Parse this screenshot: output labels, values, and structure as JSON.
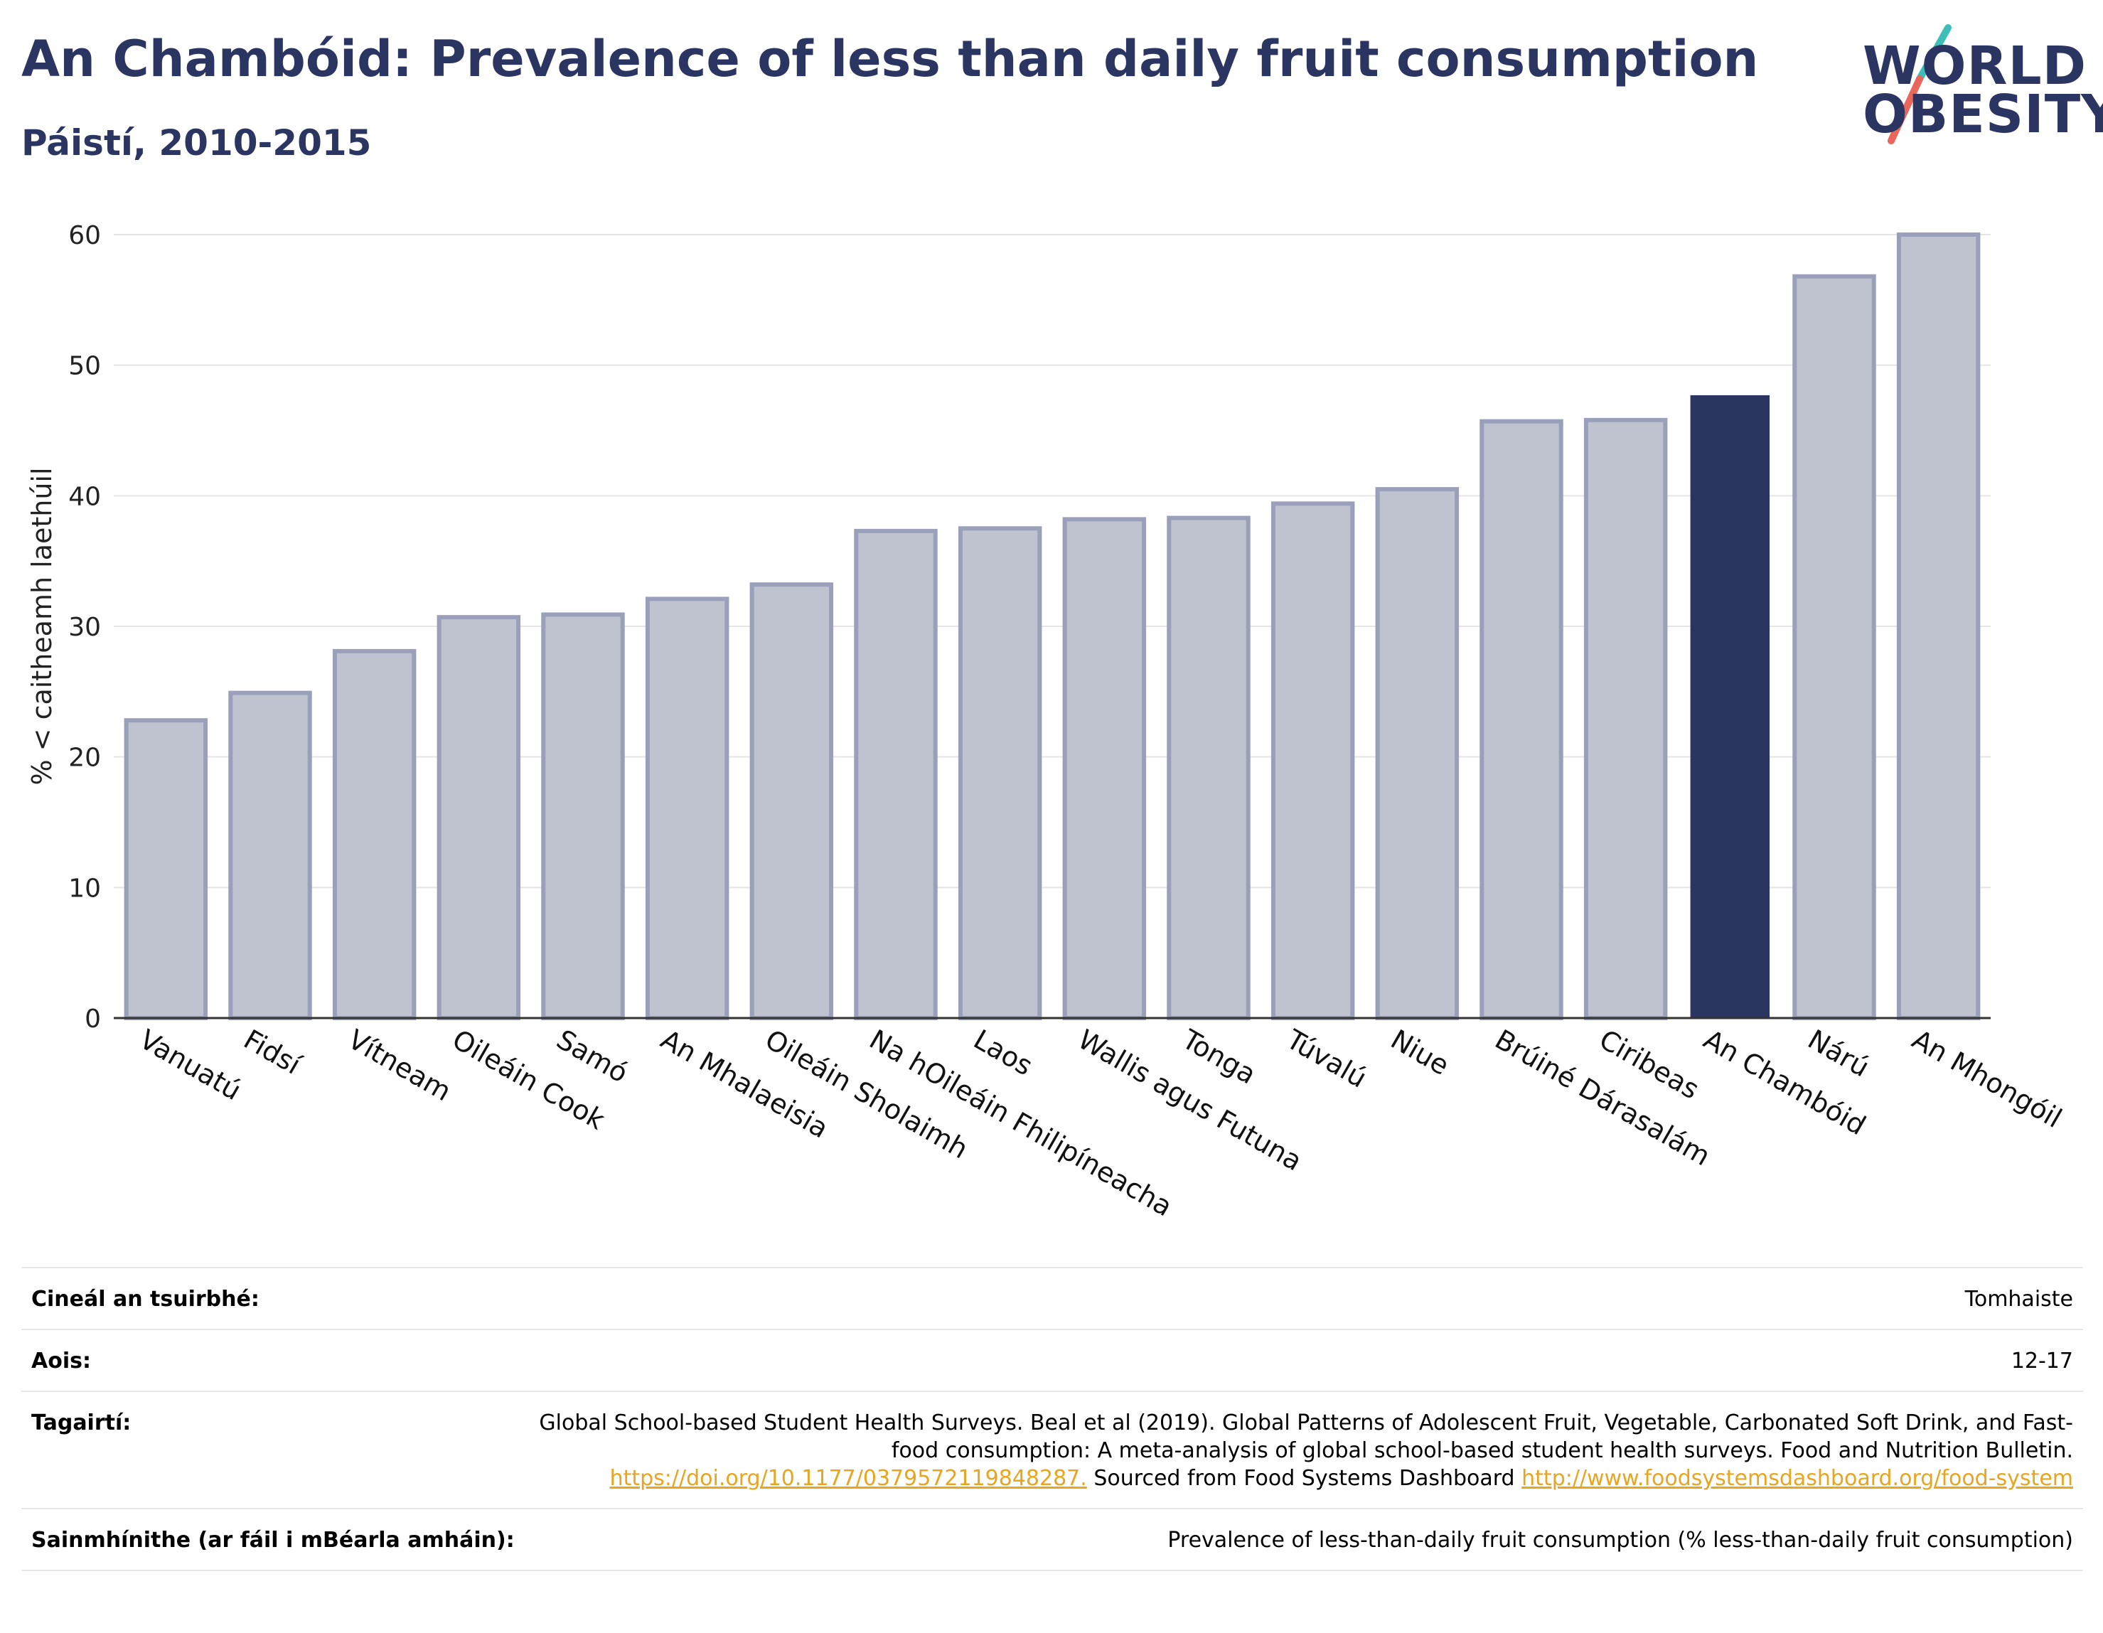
{
  "header": {
    "title": "An Chambóid: Prevalence of less than daily fruit consumption",
    "subtitle": "Páistí, 2010-2015"
  },
  "logo": {
    "line1": "WORLD",
    "line2": "OBESITY",
    "accent_teal": "#3bbfb8",
    "accent_red": "#e8675a"
  },
  "colors": {
    "bar_default": "#bfc2cf",
    "bar_default_stroke": "#9aa0ba",
    "bar_highlight": "#2b3561",
    "grid": "#e5e5e5",
    "axis": "#333333"
  },
  "chart_data": {
    "type": "bar",
    "title": "An Chambóid: Prevalence of less than daily fruit consumption",
    "subtitle": "Páistí, 2010-2015",
    "ylabel": "% < caitheamh laethúil",
    "xlabel": "",
    "ylim": [
      0,
      60
    ],
    "yticks": [
      0,
      10,
      20,
      30,
      40,
      50,
      60
    ],
    "grid": true,
    "highlight": "An Chambóid",
    "categories": [
      "Vanuatú",
      "Fidsí",
      "Vítneam",
      "Oileáin Cook",
      "Samó",
      "An Mhalaeisia",
      "Oileáin Sholaimh",
      "Na hOileáin Fhilipíneacha",
      "Laos",
      "Wallis agus Futuna",
      "Tonga",
      "Túvalú",
      "Niue",
      "Brúiné Dárasalám",
      "Ciribeas",
      "An Chambóid",
      "Nárú",
      "An Mhongóil"
    ],
    "values": [
      22.8,
      24.9,
      28.1,
      30.7,
      30.9,
      32.1,
      33.2,
      37.3,
      37.5,
      38.2,
      38.3,
      39.4,
      40.5,
      45.7,
      45.8,
      47.7,
      56.8,
      60.0
    ]
  },
  "meta": {
    "survey_type_label": "Cineál an tsuirbhé:",
    "survey_type_value": "Tomhaiste",
    "age_label": "Aois:",
    "age_value": "12-17",
    "references_label": "Tagairtí:",
    "references_text": "Global School-based Student Health Surveys. Beal et al (2019). Global Patterns of Adolescent Fruit, Vegetable, Carbonated Soft Drink, and Fast-food consumption: A meta-analysis of global school-based student health surveys. Food and Nutrition Bulletin.",
    "references_link1": "https://doi.org/10.1177/0379572119848287.",
    "references_mid": "Sourced from Food Systems Dashboard",
    "references_link2": "http://www.foodsystemsdashboard.org/food-system",
    "definitions_label": "Sainmhínithe (ar fáil i mBéarla amháin):",
    "definitions_value": "Prevalence of less-than-daily fruit consumption (% less-than-daily fruit consumption)"
  }
}
